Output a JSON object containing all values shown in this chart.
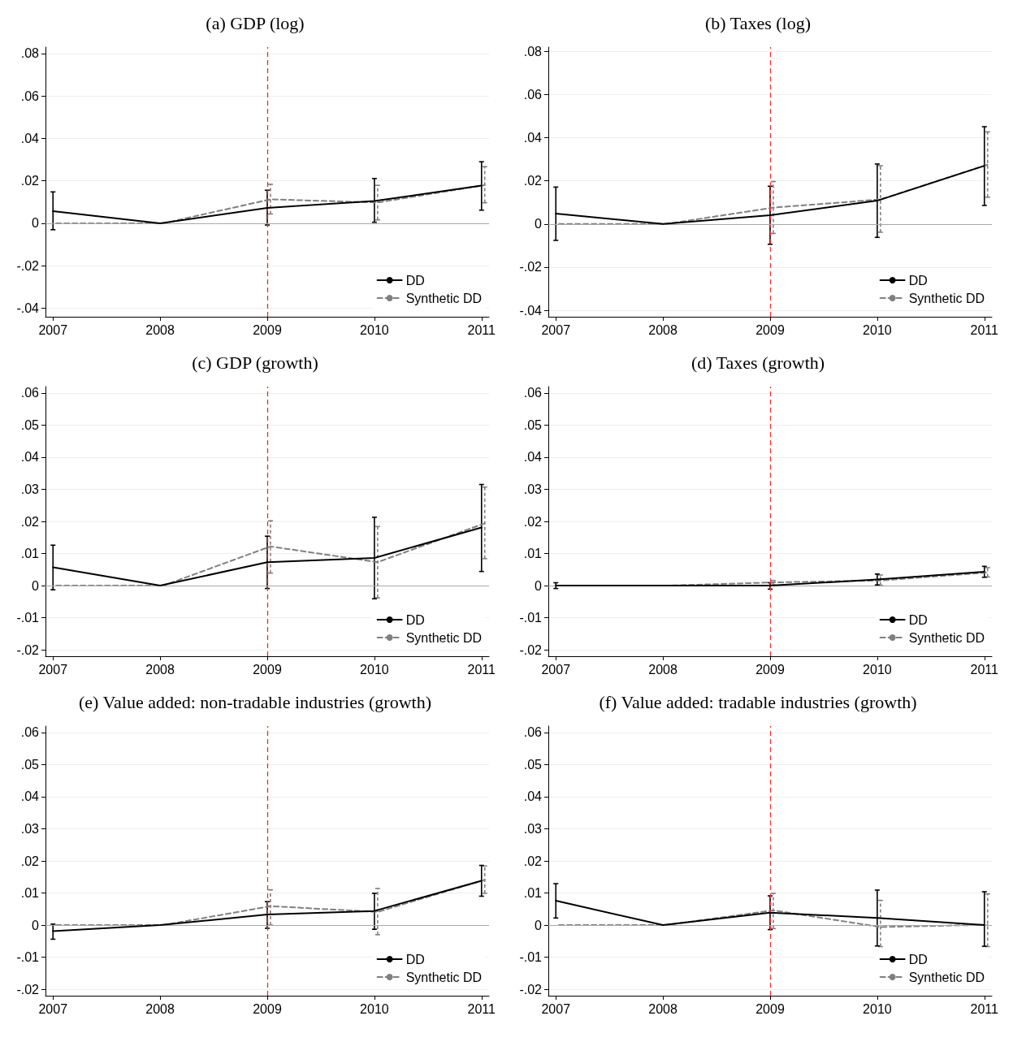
{
  "chart_data": [
    {
      "type": "line",
      "title": "(a) GDP (log)",
      "x": [
        2007,
        2008,
        2009,
        2010,
        2011
      ],
      "xlim": [
        2006.93,
        2011.07
      ],
      "xticks": [
        2007,
        2008,
        2009,
        2010,
        2011
      ],
      "ylim": [
        -0.044,
        0.083
      ],
      "yticks": [
        {
          "value": -0.04,
          "label": "-.04"
        },
        {
          "value": -0.02,
          "label": "-.02"
        },
        {
          "value": 0,
          "label": "0"
        },
        {
          "value": 0.02,
          "label": ".02"
        },
        {
          "value": 0.04,
          "label": ".04"
        },
        {
          "value": 0.06,
          "label": ".06"
        },
        {
          "value": 0.08,
          "label": ".08"
        }
      ],
      "grid": "y",
      "legend": "bottom right",
      "ref_lines": [
        {
          "axis": "x",
          "value": 2009,
          "color": "#e8302a",
          "line_style": "dashed"
        },
        {
          "axis": "y",
          "value": 0,
          "color": "#a8a8a8",
          "line_style": "solid"
        }
      ],
      "series": [
        {
          "name": "DD",
          "color": "#000000",
          "line_style": "solid",
          "values": [
            0.0057,
            0,
            0.0073,
            0.0105,
            0.0178
          ],
          "errors": [
            [
              -0.003,
              0.0148
            ],
            null,
            [
              -0.0008,
              0.0156
            ],
            [
              0.0005,
              0.0211
            ],
            [
              0.0062,
              0.029
            ]
          ]
        },
        {
          "name": "Synthetic DD",
          "color": "#808080",
          "line_style": "dashed",
          "x": [
            2007.03,
            2008.03,
            2009.03,
            2010.03,
            2011.03
          ],
          "values": [
            0,
            0,
            0.0113,
            0.0098,
            0.018
          ],
          "errors": [
            null,
            null,
            [
              0.0044,
              0.0184
            ],
            [
              0.0016,
              0.0179
            ],
            [
              0.0097,
              0.0267
            ]
          ]
        }
      ]
    },
    {
      "type": "line",
      "title": "(b) Taxes (log)",
      "x": [
        2007,
        2008,
        2009,
        2010,
        2011
      ],
      "xlim": [
        2006.93,
        2011.07
      ],
      "xticks": [
        2007,
        2008,
        2009,
        2010,
        2011
      ],
      "ylim": [
        -0.043,
        0.082
      ],
      "yticks": [
        {
          "value": -0.04,
          "label": "-.04"
        },
        {
          "value": -0.02,
          "label": "-.02"
        },
        {
          "value": 0,
          "label": "0"
        },
        {
          "value": 0.02,
          "label": ".02"
        },
        {
          "value": 0.04,
          "label": ".04"
        },
        {
          "value": 0.06,
          "label": ".06"
        },
        {
          "value": 0.08,
          "label": ".08"
        }
      ],
      "grid": "y",
      "legend": "bottom right",
      "ref_lines": [
        {
          "axis": "x",
          "value": 2009,
          "color": "#ff3030",
          "line_style": "dashed"
        },
        {
          "axis": "y",
          "value": 0,
          "color": "#a8a8a8",
          "line_style": "solid"
        }
      ],
      "series": [
        {
          "name": "DD",
          "color": "#000000",
          "line_style": "solid",
          "values": [
            0.0048,
            0,
            0.0041,
            0.0108,
            0.027
          ],
          "errors": [
            [
              -0.0076,
              0.0171
            ],
            null,
            [
              -0.0094,
              0.0175
            ],
            [
              -0.0062,
              0.0278
            ],
            [
              0.0086,
              0.0451
            ]
          ]
        },
        {
          "name": "Synthetic DD",
          "color": "#808080",
          "line_style": "dashed",
          "x": [
            2007.03,
            2008.03,
            2009.03,
            2010.03,
            2011.03
          ],
          "values": [
            0,
            0,
            0.0076,
            0.0114,
            0.0275
          ],
          "errors": [
            null,
            null,
            [
              -0.0044,
              0.0197
            ],
            [
              -0.0038,
              0.027
            ],
            [
              0.0124,
              0.0427
            ]
          ]
        }
      ]
    },
    {
      "type": "line",
      "title": "(c) GDP (growth)",
      "x": [
        2007,
        2008,
        2009,
        2010,
        2011
      ],
      "xlim": [
        2006.93,
        2011.07
      ],
      "xticks": [
        2007,
        2008,
        2009,
        2010,
        2011
      ],
      "ylim": [
        -0.022,
        0.062
      ],
      "yticks": [
        {
          "value": -0.02,
          "label": "-.02"
        },
        {
          "value": -0.01,
          "label": "-.01"
        },
        {
          "value": 0,
          "label": "0"
        },
        {
          "value": 0.01,
          "label": ".01"
        },
        {
          "value": 0.02,
          "label": ".02"
        },
        {
          "value": 0.03,
          "label": ".03"
        },
        {
          "value": 0.04,
          "label": ".04"
        },
        {
          "value": 0.05,
          "label": ".05"
        },
        {
          "value": 0.06,
          "label": ".06"
        }
      ],
      "grid": "y",
      "legend": "bottom right",
      "ref_lines": [
        {
          "axis": "x",
          "value": 2009,
          "color": "#e8302a",
          "line_style": "dashed"
        },
        {
          "axis": "y",
          "value": 0,
          "color": "#a8a8a8",
          "line_style": "solid"
        }
      ],
      "series": [
        {
          "name": "DD",
          "color": "#000000",
          "line_style": "solid",
          "values": [
            0.0057,
            0,
            0.0073,
            0.0086,
            0.0181
          ],
          "errors": [
            [
              -0.0013,
              0.0126
            ],
            null,
            [
              -0.0009,
              0.0154
            ],
            [
              -0.0041,
              0.0213
            ],
            [
              0.0044,
              0.0315
            ]
          ]
        },
        {
          "name": "Synthetic DD",
          "color": "#808080",
          "line_style": "dashed",
          "x": [
            2007.03,
            2008.03,
            2009.03,
            2010.03,
            2011.03
          ],
          "values": [
            0,
            0,
            0.0122,
            0.0073,
            0.0194
          ],
          "errors": [
            null,
            null,
            [
              0.0039,
              0.0202
            ],
            [
              -0.0038,
              0.0184
            ],
            [
              0.0084,
              0.0307
            ]
          ]
        }
      ]
    },
    {
      "type": "line",
      "title": "(d) Taxes (growth)",
      "x": [
        2007,
        2008,
        2009,
        2010,
        2011
      ],
      "xlim": [
        2006.93,
        2011.07
      ],
      "xticks": [
        2007,
        2008,
        2009,
        2010,
        2011
      ],
      "ylim": [
        -0.022,
        0.062
      ],
      "yticks": [
        {
          "value": -0.02,
          "label": "-.02"
        },
        {
          "value": -0.01,
          "label": "-.01"
        },
        {
          "value": 0,
          "label": "0"
        },
        {
          "value": 0.01,
          "label": ".01"
        },
        {
          "value": 0.02,
          "label": ".02"
        },
        {
          "value": 0.03,
          "label": ".03"
        },
        {
          "value": 0.04,
          "label": ".04"
        },
        {
          "value": 0.05,
          "label": ".05"
        },
        {
          "value": 0.06,
          "label": ".06"
        }
      ],
      "grid": "y",
      "legend": "bottom right",
      "ref_lines": [
        {
          "axis": "x",
          "value": 2009,
          "color": "#ff3030",
          "line_style": "dashed"
        },
        {
          "axis": "y",
          "value": 0,
          "color": "#a8a8a8",
          "line_style": "solid"
        }
      ],
      "series": [
        {
          "name": "DD",
          "color": "#000000",
          "line_style": "solid",
          "values": [
            0,
            0,
            0,
            0.0019,
            0.0043
          ],
          "errors": [
            [
              -0.0009,
              0.0009
            ],
            null,
            [
              -0.0011,
              0.0009
            ],
            [
              0.0002,
              0.0036
            ],
            [
              0.0026,
              0.006
            ]
          ]
        },
        {
          "name": "Synthetic DD",
          "color": "#808080",
          "line_style": "dashed",
          "x": [
            2007.03,
            2008.03,
            2009.03,
            2010.03,
            2011.03
          ],
          "values": [
            0,
            0,
            0.001,
            0.0016,
            0.0041
          ],
          "errors": [
            null,
            null,
            [
              0.0002,
              0.0016
            ],
            [
              0.0001,
              0.0033
            ],
            [
              0.0027,
              0.0056
            ]
          ]
        }
      ]
    },
    {
      "type": "line",
      "title": "(e) Value added: non-tradable industries (growth)",
      "x": [
        2007,
        2008,
        2009,
        2010,
        2011
      ],
      "xlim": [
        2006.93,
        2011.07
      ],
      "xticks": [
        2007,
        2008,
        2009,
        2010,
        2011
      ],
      "ylim": [
        -0.022,
        0.062
      ],
      "yticks": [
        {
          "value": -0.02,
          "label": "-.02"
        },
        {
          "value": -0.01,
          "label": "-.01"
        },
        {
          "value": 0,
          "label": "0"
        },
        {
          "value": 0.01,
          "label": ".01"
        },
        {
          "value": 0.02,
          "label": ".02"
        },
        {
          "value": 0.03,
          "label": ".03"
        },
        {
          "value": 0.04,
          "label": ".04"
        },
        {
          "value": 0.05,
          "label": ".05"
        },
        {
          "value": 0.06,
          "label": ".06"
        }
      ],
      "grid": "y",
      "legend": "bottom right",
      "ref_lines": [
        {
          "axis": "x",
          "value": 2009,
          "color": "#e8302a",
          "line_style": "dashed"
        },
        {
          "axis": "y",
          "value": 0,
          "color": "#a8a8a8",
          "line_style": "solid"
        }
      ],
      "series": [
        {
          "name": "DD",
          "color": "#000000",
          "line_style": "solid",
          "values": [
            -0.0019,
            0,
            0.0033,
            0.0044,
            0.0138
          ],
          "errors": [
            [
              -0.0044,
              0.0003
            ],
            null,
            [
              -0.001,
              0.0073
            ],
            [
              -0.0013,
              0.0099
            ],
            [
              0.009,
              0.0186
            ]
          ]
        },
        {
          "name": "Synthetic DD",
          "color": "#808080",
          "line_style": "dashed",
          "x": [
            2007.03,
            2008.03,
            2009.03,
            2010.03,
            2011.03
          ],
          "values": [
            0,
            0,
            0.0059,
            0.0041,
            0.0141
          ],
          "errors": [
            null,
            null,
            [
              0,
              0.011
            ],
            [
              -0.003,
              0.0114
            ],
            [
              0.0099,
              0.0184
            ]
          ]
        }
      ]
    },
    {
      "type": "line",
      "title": "(f) Value added: tradable industries (growth)",
      "x": [
        2007,
        2008,
        2009,
        2010,
        2011
      ],
      "xlim": [
        2006.93,
        2011.07
      ],
      "xticks": [
        2007,
        2008,
        2009,
        2010,
        2011
      ],
      "ylim": [
        -0.022,
        0.062
      ],
      "yticks": [
        {
          "value": -0.02,
          "label": "-.02"
        },
        {
          "value": -0.01,
          "label": "-.01"
        },
        {
          "value": 0,
          "label": "0"
        },
        {
          "value": 0.01,
          "label": ".01"
        },
        {
          "value": 0.02,
          "label": ".02"
        },
        {
          "value": 0.03,
          "label": ".03"
        },
        {
          "value": 0.04,
          "label": ".04"
        },
        {
          "value": 0.05,
          "label": ".05"
        },
        {
          "value": 0.06,
          "label": ".06"
        }
      ],
      "grid": "y",
      "legend": "bottom right",
      "ref_lines": [
        {
          "axis": "x",
          "value": 2009,
          "color": "#ff3030",
          "line_style": "dashed"
        },
        {
          "axis": "y",
          "value": 0,
          "color": "#a8a8a8",
          "line_style": "solid"
        }
      ],
      "series": [
        {
          "name": "DD",
          "color": "#000000",
          "line_style": "solid",
          "values": [
            0.0076,
            0,
            0.0039,
            0.0022,
            0
          ],
          "errors": [
            [
              0.0022,
              0.0129
            ],
            null,
            [
              -0.0014,
              0.0091
            ],
            [
              -0.0065,
              0.0109
            ],
            [
              -0.0066,
              0.0104
            ]
          ]
        },
        {
          "name": "Synthetic DD",
          "color": "#808080",
          "line_style": "dashed",
          "x": [
            2007.03,
            2008.03,
            2009.03,
            2010.03,
            2011.03
          ],
          "values": [
            0,
            0,
            0.0046,
            -0.0006,
            0.0001
          ],
          "errors": [
            null,
            null,
            [
              -0.0011,
              0.0099
            ],
            [
              -0.0067,
              0.0077
            ],
            [
              -0.0067,
              0.0097
            ]
          ]
        }
      ]
    }
  ]
}
